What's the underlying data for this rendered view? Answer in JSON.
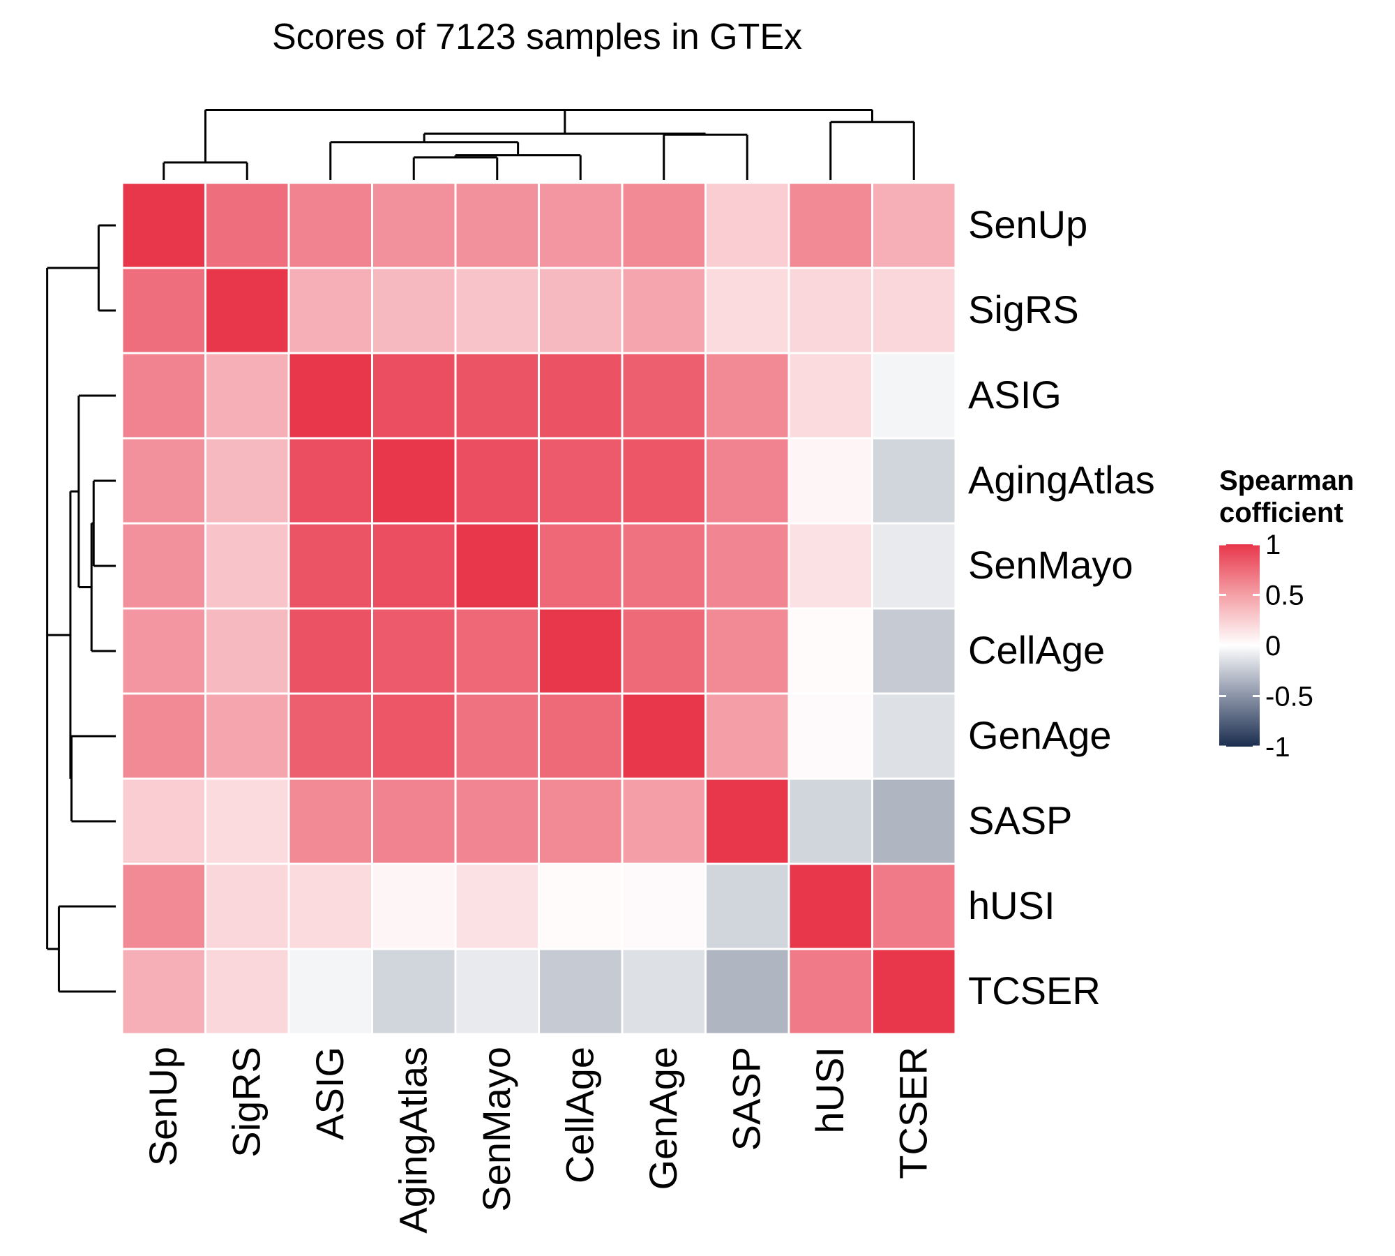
{
  "chart_data": {
    "type": "heatmap",
    "title": "Scores of 7123 samples in GTEx",
    "rows": [
      "SenUp",
      "SigRS",
      "ASIG",
      "AgingAtlas",
      "SenMayo",
      "CellAge",
      "GenAge",
      "SASP",
      "hUSI",
      "TCSER"
    ],
    "columns": [
      "SenUp",
      "SigRS",
      "ASIG",
      "AgingAtlas",
      "SenMayo",
      "CellAge",
      "GenAge",
      "SASP",
      "hUSI",
      "TCSER"
    ],
    "values": [
      [
        1.0,
        0.72,
        0.62,
        0.55,
        0.55,
        0.52,
        0.58,
        0.25,
        0.58,
        0.4
      ],
      [
        0.72,
        1.0,
        0.4,
        0.35,
        0.3,
        0.35,
        0.45,
        0.18,
        0.2,
        0.2
      ],
      [
        0.62,
        0.4,
        1.0,
        0.88,
        0.85,
        0.86,
        0.8,
        0.58,
        0.18,
        -0.05
      ],
      [
        0.55,
        0.35,
        0.88,
        1.0,
        0.88,
        0.82,
        0.84,
        0.62,
        0.05,
        -0.2
      ],
      [
        0.55,
        0.3,
        0.85,
        0.88,
        1.0,
        0.75,
        0.7,
        0.6,
        0.15,
        -0.1
      ],
      [
        0.52,
        0.35,
        0.86,
        0.82,
        0.75,
        1.0,
        0.74,
        0.58,
        0.02,
        -0.25
      ],
      [
        0.58,
        0.45,
        0.8,
        0.84,
        0.7,
        0.74,
        1.0,
        0.48,
        0.03,
        -0.15
      ],
      [
        0.25,
        0.18,
        0.58,
        0.62,
        0.6,
        0.58,
        0.48,
        1.0,
        -0.2,
        -0.35
      ],
      [
        0.58,
        0.2,
        0.18,
        0.05,
        0.15,
        0.02,
        0.03,
        -0.2,
        1.0,
        0.66
      ],
      [
        0.4,
        0.2,
        -0.05,
        -0.2,
        -0.1,
        -0.25,
        -0.15,
        -0.35,
        0.66,
        1.0
      ]
    ],
    "legend": {
      "title_line1": "Spearman",
      "title_line2": "cofficient",
      "ticks": [
        1,
        0.5,
        0,
        -0.5,
        -1
      ],
      "tick_labels": [
        "1",
        "0.5",
        "0",
        "-0.5",
        "-1"
      ],
      "range": [
        -1,
        1
      ]
    },
    "colors": {
      "high": "#E8364A",
      "mid": "#FFFFFF",
      "low": "#1B2E4F"
    },
    "dendrogram_tree": {
      "children": [
        {
          "children": [
            {
              "leaf": 0
            },
            {
              "leaf": 1
            }
          ]
        },
        {
          "children": [
            {
              "children": [
                {
                  "leaf": 2
                },
                {
                  "children": [
                    {
                      "children": [
                        {
                          "leaf": 3
                        },
                        {
                          "leaf": 4
                        }
                      ]
                    },
                    {
                      "leaf": 5
                    }
                  ]
                }
              ]
            },
            {
              "children": [
                {
                  "children": [
                    {
                      "leaf": 6
                    }
                  ]
                },
                {
                  "leaf": 7
                }
              ]
            }
          ]
        },
        {
          "children": [
            {
              "leaf": 8
            },
            {
              "leaf": 9
            }
          ]
        }
      ]
    },
    "dendrogram": {
      "merges": [
        {
          "a": [
            3
          ],
          "b": [
            4
          ],
          "h": 0.03
        },
        {
          "a": [
            3,
            4
          ],
          "b": [
            5
          ],
          "h": 0.05
        },
        {
          "a": [
            2
          ],
          "b": [
            3,
            4,
            5
          ],
          "h": 0.06
        },
        {
          "a": [
            2,
            3,
            4,
            5
          ],
          "b": [
            6
          ],
          "h": 0.14
        },
        {
          "a": [
            0
          ],
          "b": [
            1
          ],
          "h": 0.2
        },
        {
          "a": [
            8
          ],
          "b": [
            9
          ],
          "h": 0.21
        },
        {
          "a": [
            2,
            3,
            4,
            5,
            6
          ],
          "b": [
            7
          ],
          "h": 0.33
        },
        {
          "a": [
            0,
            1
          ],
          "b": [
            2,
            3,
            4,
            5,
            6,
            7
          ],
          "h": 0.48
        },
        {
          "a": [
            0,
            1,
            2,
            3,
            4,
            5,
            6,
            7
          ],
          "b": [
            8,
            9
          ],
          "h": 1.0
        }
      ]
    }
  }
}
